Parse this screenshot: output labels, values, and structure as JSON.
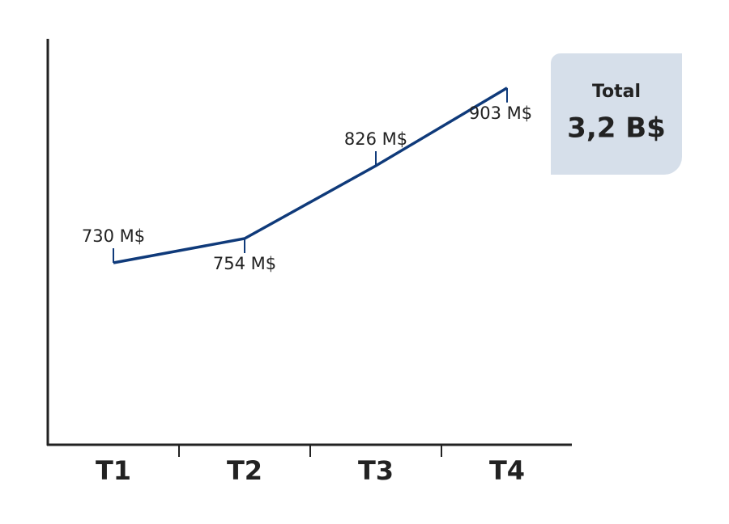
{
  "chart_data": {
    "type": "line",
    "categories": [
      "T1",
      "T2",
      "T3",
      "T4"
    ],
    "values": [
      730,
      754,
      826,
      903
    ],
    "value_labels": [
      "730 M$",
      "754 M$",
      "826 M$",
      "903 M$"
    ],
    "color": "#0f3a7a",
    "ylim": [
      550,
      950
    ],
    "annotation": {
      "title": "Total",
      "text": "3,2 B$"
    }
  }
}
